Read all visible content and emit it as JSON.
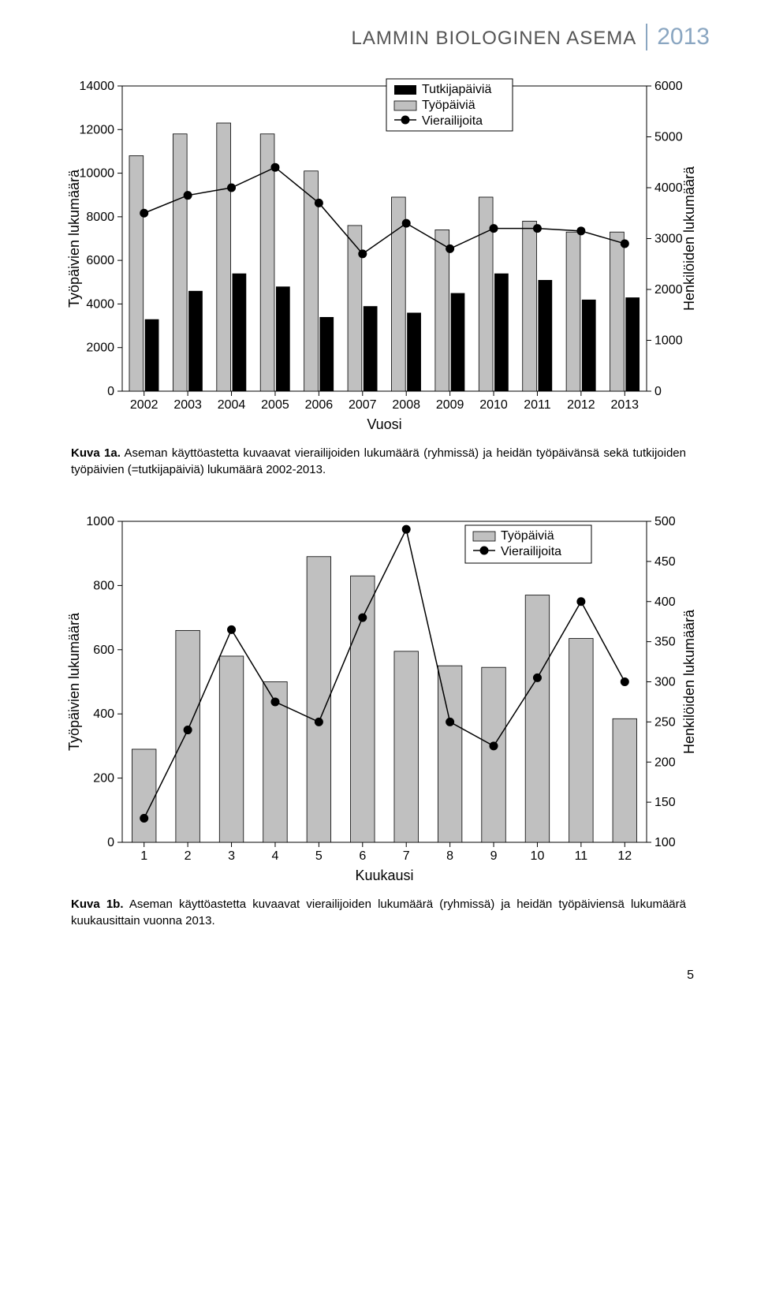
{
  "header": {
    "title": "LAMMIN BIOLOGINEN ASEMA",
    "year": "2013",
    "title_color": "#555555",
    "year_color": "#8aa6c1"
  },
  "chart1": {
    "type": "bar+line",
    "categories": [
      "2002",
      "2003",
      "2004",
      "2005",
      "2006",
      "2007",
      "2008",
      "2009",
      "2010",
      "2011",
      "2012",
      "2013"
    ],
    "grey_bars_label": "Työpäiviä",
    "black_bars_label": "Tutkijapäiviä",
    "line_label": "Vierailijoita",
    "grey_bars": [
      10800,
      11800,
      12300,
      11800,
      10100,
      7600,
      8900,
      7400,
      8900,
      7800,
      7300,
      7300
    ],
    "black_bars": [
      3300,
      4600,
      5400,
      4800,
      3400,
      3900,
      3600,
      4500,
      5400,
      5100,
      4200,
      4300
    ],
    "line_values": [
      3500,
      3850,
      4000,
      4400,
      3700,
      2700,
      3300,
      2800,
      3200,
      3200,
      3150,
      2900
    ],
    "y_left": {
      "min": 0,
      "max": 14000,
      "step": 2000,
      "title": "Työpäivien lukumäärä"
    },
    "y_right": {
      "min": 0,
      "max": 6000,
      "step": 1000,
      "title": "Henkilöiden lukumäärä"
    },
    "x_title": "Vuosi",
    "grey_color": "#c0c0c0",
    "black_color": "#000000",
    "background": "#ffffff",
    "caption_bold": "Kuva 1a.",
    "caption_text": " Aseman käyttöastetta kuvaavat vierailijoiden lukumäärä (ryhmissä) ja heidän työpäivänsä sekä tutkijoiden työpäivien (=tutkijapäiviä) lukumäärä 2002-2013."
  },
  "chart2": {
    "type": "bar+line",
    "categories": [
      "1",
      "2",
      "3",
      "4",
      "5",
      "6",
      "7",
      "8",
      "9",
      "10",
      "11",
      "12"
    ],
    "grey_bars_label": "Työpäiviä",
    "line_label": "Vierailijoita",
    "grey_bars": [
      290,
      660,
      580,
      500,
      890,
      830,
      595,
      550,
      545,
      770,
      635,
      385
    ],
    "line_values": [
      130,
      240,
      365,
      275,
      250,
      380,
      490,
      250,
      220,
      305,
      400,
      300
    ],
    "y_left": {
      "min": 0,
      "max": 1000,
      "step": 200,
      "title": "Työpäivien lukumäärä"
    },
    "y_right": {
      "min": 100,
      "max": 500,
      "step": 50,
      "title": "Henkilöiden lukumäärä"
    },
    "x_title": "Kuukausi",
    "grey_color": "#c0c0c0",
    "background": "#ffffff",
    "caption_bold": "Kuva 1b.",
    "caption_text": " Aseman käyttöastetta kuvaavat vierailijoiden lukumäärä (ryhmissä) ja heidän työpäiviensä lukumäärä kuukausittain vuonna 2013."
  },
  "page_number": "5"
}
